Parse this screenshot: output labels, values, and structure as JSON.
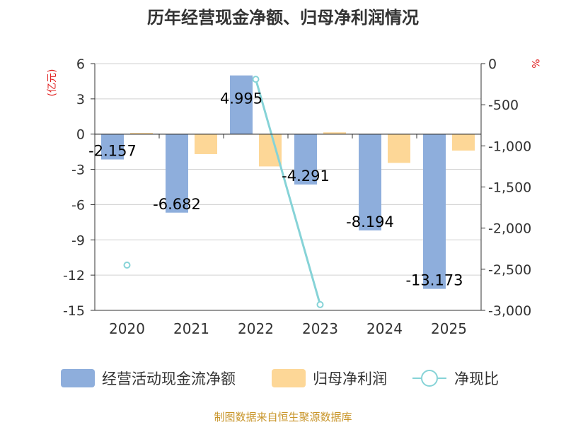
{
  "colors": {
    "cash_flow": "#8eaedc",
    "net_profit": "#fdd797",
    "ratio": "#86d3d7",
    "unit_text": "#e02020",
    "source_text": "#c8952a"
  },
  "chart_data": {
    "type": "bar+line",
    "title": "历年经营现金净额、归母净利润情况",
    "categories": [
      "2020",
      "2021",
      "2022",
      "2023",
      "2024",
      "2025"
    ],
    "left_axis": {
      "unit": "(亿元)",
      "range": [
        -15,
        6
      ],
      "ticks": [
        6,
        3,
        0,
        -3,
        -6,
        -9,
        -12,
        -15
      ]
    },
    "right_axis": {
      "unit": "%",
      "range": [
        -3000,
        0
      ],
      "ticks": [
        "0",
        "-500",
        "-1,000",
        "-1,500",
        "-2,000",
        "-2,500",
        "-3,000"
      ]
    },
    "series": [
      {
        "name": "经营活动现金流净额",
        "type": "bar",
        "values": [
          -2.157,
          -6.682,
          4.995,
          -4.291,
          -8.194,
          -13.173
        ],
        "labels": [
          "-2.157",
          "-6.682",
          "4.995",
          "-4.291",
          "-8.194",
          "-13.173"
        ]
      },
      {
        "name": "归母净利润",
        "type": "bar",
        "values": [
          0.1,
          -1.7,
          -2.75,
          0.15,
          -2.45,
          -1.4
        ]
      },
      {
        "name": "净现比",
        "type": "line",
        "axis": "right",
        "values": [
          -2450,
          null,
          -190,
          -2930,
          null,
          null
        ]
      }
    ],
    "source": "制图数据来自恒生聚源数据库"
  }
}
